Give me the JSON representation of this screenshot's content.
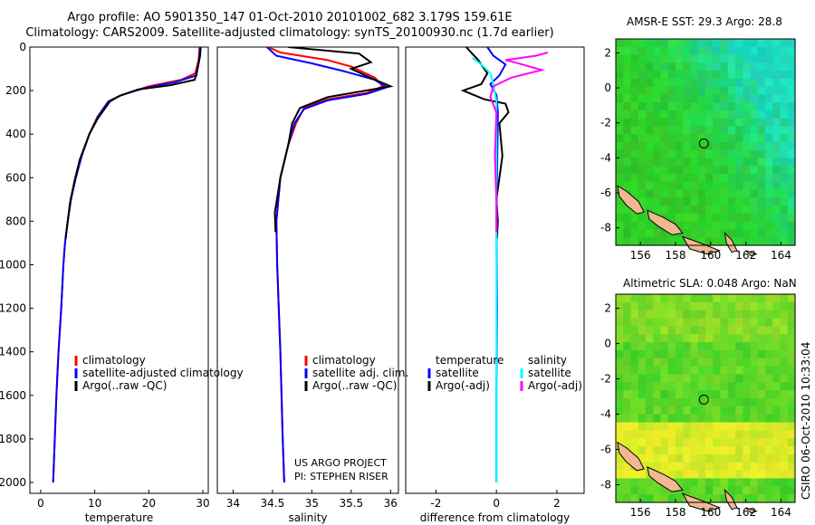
{
  "title_line1": "Argo profile: AO 5901350_147 01-Oct-2010 20101002_682 3.179S 159.61E",
  "title_line2": "Climatology: CARS2009. Satellite-adjusted climatology: synTS_20100930.nc (1.7d earlier)",
  "sst_title": "AMSR-E SST: 29.3 Argo: 28.8",
  "sla_title": "Altimetric SLA: 0.048 Argo: NaN",
  "project_line1": "US ARGO PROJECT",
  "project_line2": "PI: STEPHEN RISER",
  "side_stamp": "CSIRO 06-Oct-2010 10:33:04",
  "colors": {
    "climatology": "#ff0000",
    "satellite": "#0000ff",
    "argo": "#000000",
    "sat_sal": "#00ffff",
    "argo_sal_adj": "#ff00ff",
    "land": "#f0b890"
  },
  "chart_data": [
    {
      "type": "line",
      "xlabel": "temperature",
      "ylabel": "",
      "xlim": [
        -2,
        31
      ],
      "ylim": [
        2050,
        0
      ],
      "xticks": [
        "0",
        "10",
        "20",
        "30"
      ],
      "xtick_values": [
        0,
        10,
        20,
        30
      ],
      "yticks": [
        "0",
        "200",
        "400",
        "600",
        "800",
        "1000",
        "1200",
        "1400",
        "1600",
        "1800",
        "2000"
      ],
      "ytick_values": [
        0,
        200,
        400,
        600,
        800,
        1000,
        1200,
        1400,
        1600,
        1800,
        2000
      ],
      "legend": [
        "climatology",
        "satellite-adjusted climatology",
        "Argo(..raw -QC)"
      ],
      "series": [
        {
          "name": "climatology",
          "color": "climatology",
          "points": [
            [
              29.4,
              0
            ],
            [
              29.2,
              60
            ],
            [
              28.6,
              120
            ],
            [
              26,
              150
            ],
            [
              20,
              180
            ],
            [
              15,
              220
            ],
            [
              12.5,
              250
            ],
            [
              10.5,
              320
            ],
            [
              9,
              400
            ],
            [
              7.5,
              500
            ],
            [
              6.5,
              600
            ],
            [
              5.5,
              700
            ],
            [
              5,
              800
            ],
            [
              4.5,
              900
            ],
            [
              4.2,
              1000
            ],
            [
              3.8,
              1200
            ],
            [
              3.3,
              1400
            ],
            [
              2.9,
              1600
            ],
            [
              2.6,
              1800
            ],
            [
              2.3,
              2000
            ]
          ]
        },
        {
          "name": "satellite-adjusted climatology",
          "color": "satellite",
          "points": [
            [
              29.5,
              0
            ],
            [
              29.3,
              60
            ],
            [
              28.8,
              130
            ],
            [
              25,
              160
            ],
            [
              19,
              190
            ],
            [
              15,
              220
            ],
            [
              12.5,
              250
            ],
            [
              10.6,
              320
            ],
            [
              9,
              400
            ],
            [
              7.6,
              500
            ],
            [
              6.5,
              600
            ],
            [
              5.6,
              700
            ],
            [
              5,
              800
            ],
            [
              4.5,
              900
            ],
            [
              4.2,
              1000
            ],
            [
              3.8,
              1200
            ],
            [
              3.3,
              1400
            ],
            [
              2.9,
              1600
            ],
            [
              2.6,
              1800
            ],
            [
              2.3,
              2000
            ]
          ]
        },
        {
          "name": "Argo(..raw -QC)",
          "color": "argo",
          "points": [
            [
              29.6,
              0
            ],
            [
              29.5,
              40
            ],
            [
              29,
              100
            ],
            [
              28.5,
              150
            ],
            [
              24,
              175
            ],
            [
              18,
              195
            ],
            [
              14.5,
              225
            ],
            [
              12.8,
              250
            ],
            [
              10.5,
              330
            ],
            [
              9,
              400
            ],
            [
              7.2,
              520
            ],
            [
              6.2,
              620
            ],
            [
              5.4,
              720
            ],
            [
              5,
              800
            ],
            [
              4.6,
              880
            ]
          ]
        }
      ]
    },
    {
      "type": "line",
      "xlabel": "salinity",
      "ylabel": "",
      "xlim": [
        33.8,
        36.1
      ],
      "ylim": [
        2050,
        0
      ],
      "xticks": [
        "34",
        "34.5",
        "35",
        "35.5",
        "36"
      ],
      "xtick_values": [
        34,
        34.5,
        35,
        35.5,
        36
      ],
      "legend": [
        "climatology",
        "satellite adj. clim.",
        "Argo(..raw -QC)"
      ],
      "series": [
        {
          "name": "climatology",
          "color": "climatology",
          "points": [
            [
              34.45,
              0
            ],
            [
              34.6,
              25
            ],
            [
              35.2,
              60
            ],
            [
              35.5,
              90
            ],
            [
              35.8,
              140
            ],
            [
              35.9,
              180
            ],
            [
              35.7,
              210
            ],
            [
              35.2,
              240
            ],
            [
              34.9,
              280
            ],
            [
              34.8,
              350
            ],
            [
              34.7,
              450
            ],
            [
              34.6,
              600
            ],
            [
              34.55,
              800
            ],
            [
              34.56,
              1000
            ],
            [
              34.6,
              1400
            ],
            [
              34.63,
              1800
            ],
            [
              34.65,
              2000
            ]
          ]
        },
        {
          "name": "satellite adj. clim.",
          "color": "satellite",
          "points": [
            [
              34.43,
              0
            ],
            [
              34.55,
              40
            ],
            [
              35,
              75
            ],
            [
              35.4,
              110
            ],
            [
              35.8,
              150
            ],
            [
              35.95,
              185
            ],
            [
              35.7,
              215
            ],
            [
              35.2,
              245
            ],
            [
              34.9,
              285
            ],
            [
              34.78,
              350
            ],
            [
              34.7,
              450
            ],
            [
              34.6,
              600
            ],
            [
              34.55,
              800
            ],
            [
              34.56,
              1000
            ],
            [
              34.6,
              1400
            ],
            [
              34.63,
              1800
            ],
            [
              34.65,
              2000
            ]
          ]
        },
        {
          "name": "Argo(..raw -QC)",
          "color": "argo",
          "points": [
            [
              34.7,
              0
            ],
            [
              35.6,
              30
            ],
            [
              35.75,
              70
            ],
            [
              35.5,
              100
            ],
            [
              35.8,
              150
            ],
            [
              36,
              180
            ],
            [
              35.6,
              205
            ],
            [
              35.2,
              230
            ],
            [
              34.85,
              280
            ],
            [
              34.75,
              350
            ],
            [
              34.7,
              450
            ],
            [
              34.6,
              600
            ],
            [
              34.53,
              760
            ],
            [
              34.54,
              850
            ]
          ]
        }
      ]
    },
    {
      "type": "line",
      "xlabel": "difference from climatology",
      "ylabel": "",
      "xlim": [
        -3,
        2.9
      ],
      "ylim": [
        2050,
        0
      ],
      "xticks": [
        "-2",
        "0",
        "2"
      ],
      "xtick_values": [
        -2,
        0,
        2
      ],
      "legend": [
        "temperature",
        "satellite",
        "Argo(-adj)",
        "salinity",
        "satellite",
        "Argo(-adj)"
      ],
      "series": [
        {
          "name": "temperature satellite",
          "color": "satellite",
          "points": [
            [
              -0.3,
              0
            ],
            [
              -0.1,
              40
            ],
            [
              0.3,
              80
            ],
            [
              0.1,
              130
            ],
            [
              -0.2,
              170
            ],
            [
              0,
              220
            ],
            [
              0.05,
              300
            ],
            [
              0.03,
              500
            ],
            [
              0,
              800
            ],
            [
              0.02,
              1200
            ],
            [
              0,
              1600
            ],
            [
              0,
              2000
            ]
          ]
        },
        {
          "name": "temperature Argo(-adj)",
          "color": "argo",
          "points": [
            [
              -1,
              0
            ],
            [
              -0.6,
              60
            ],
            [
              -0.3,
              120
            ],
            [
              -0.5,
              170
            ],
            [
              -1.1,
              200
            ],
            [
              -0.4,
              240
            ],
            [
              0.3,
              260
            ],
            [
              0.4,
              300
            ],
            [
              0.1,
              350
            ],
            [
              0.2,
              500
            ],
            [
              0,
              700
            ],
            [
              0.05,
              800
            ],
            [
              0.02,
              880
            ]
          ]
        },
        {
          "name": "salinity satellite",
          "color": "sat_sal",
          "points": [
            [
              -0.8,
              50
            ],
            [
              -0.5,
              80
            ],
            [
              -0.2,
              120
            ],
            [
              -0.1,
              170
            ],
            [
              0,
              250
            ],
            [
              0,
              400
            ],
            [
              0,
              800
            ],
            [
              0,
              1200
            ],
            [
              0,
              1600
            ],
            [
              0,
              2000
            ]
          ]
        },
        {
          "name": "salinity Argo(-adj)",
          "color": "argo_sal_adj",
          "points": [
            [
              1.7,
              25
            ],
            [
              1.3,
              40
            ],
            [
              0.3,
              60
            ],
            [
              0.6,
              70
            ],
            [
              1.5,
              105
            ],
            [
              0.5,
              140
            ],
            [
              -0.1,
              180
            ],
            [
              -0.2,
              230
            ],
            [
              0,
              300
            ],
            [
              -0.05,
              500
            ],
            [
              0,
              700
            ],
            [
              0,
              850
            ]
          ]
        }
      ]
    }
  ],
  "maps": {
    "xticks": [
      "156",
      "158",
      "160",
      "162",
      "164"
    ],
    "sst_yticks": [
      "2",
      "0",
      "-2",
      "-4",
      "-6",
      "-8"
    ],
    "sla_yticks": [
      "2",
      "0",
      "-2",
      "-4",
      "-6",
      "-8"
    ],
    "float_marker": "float-position-circle"
  }
}
